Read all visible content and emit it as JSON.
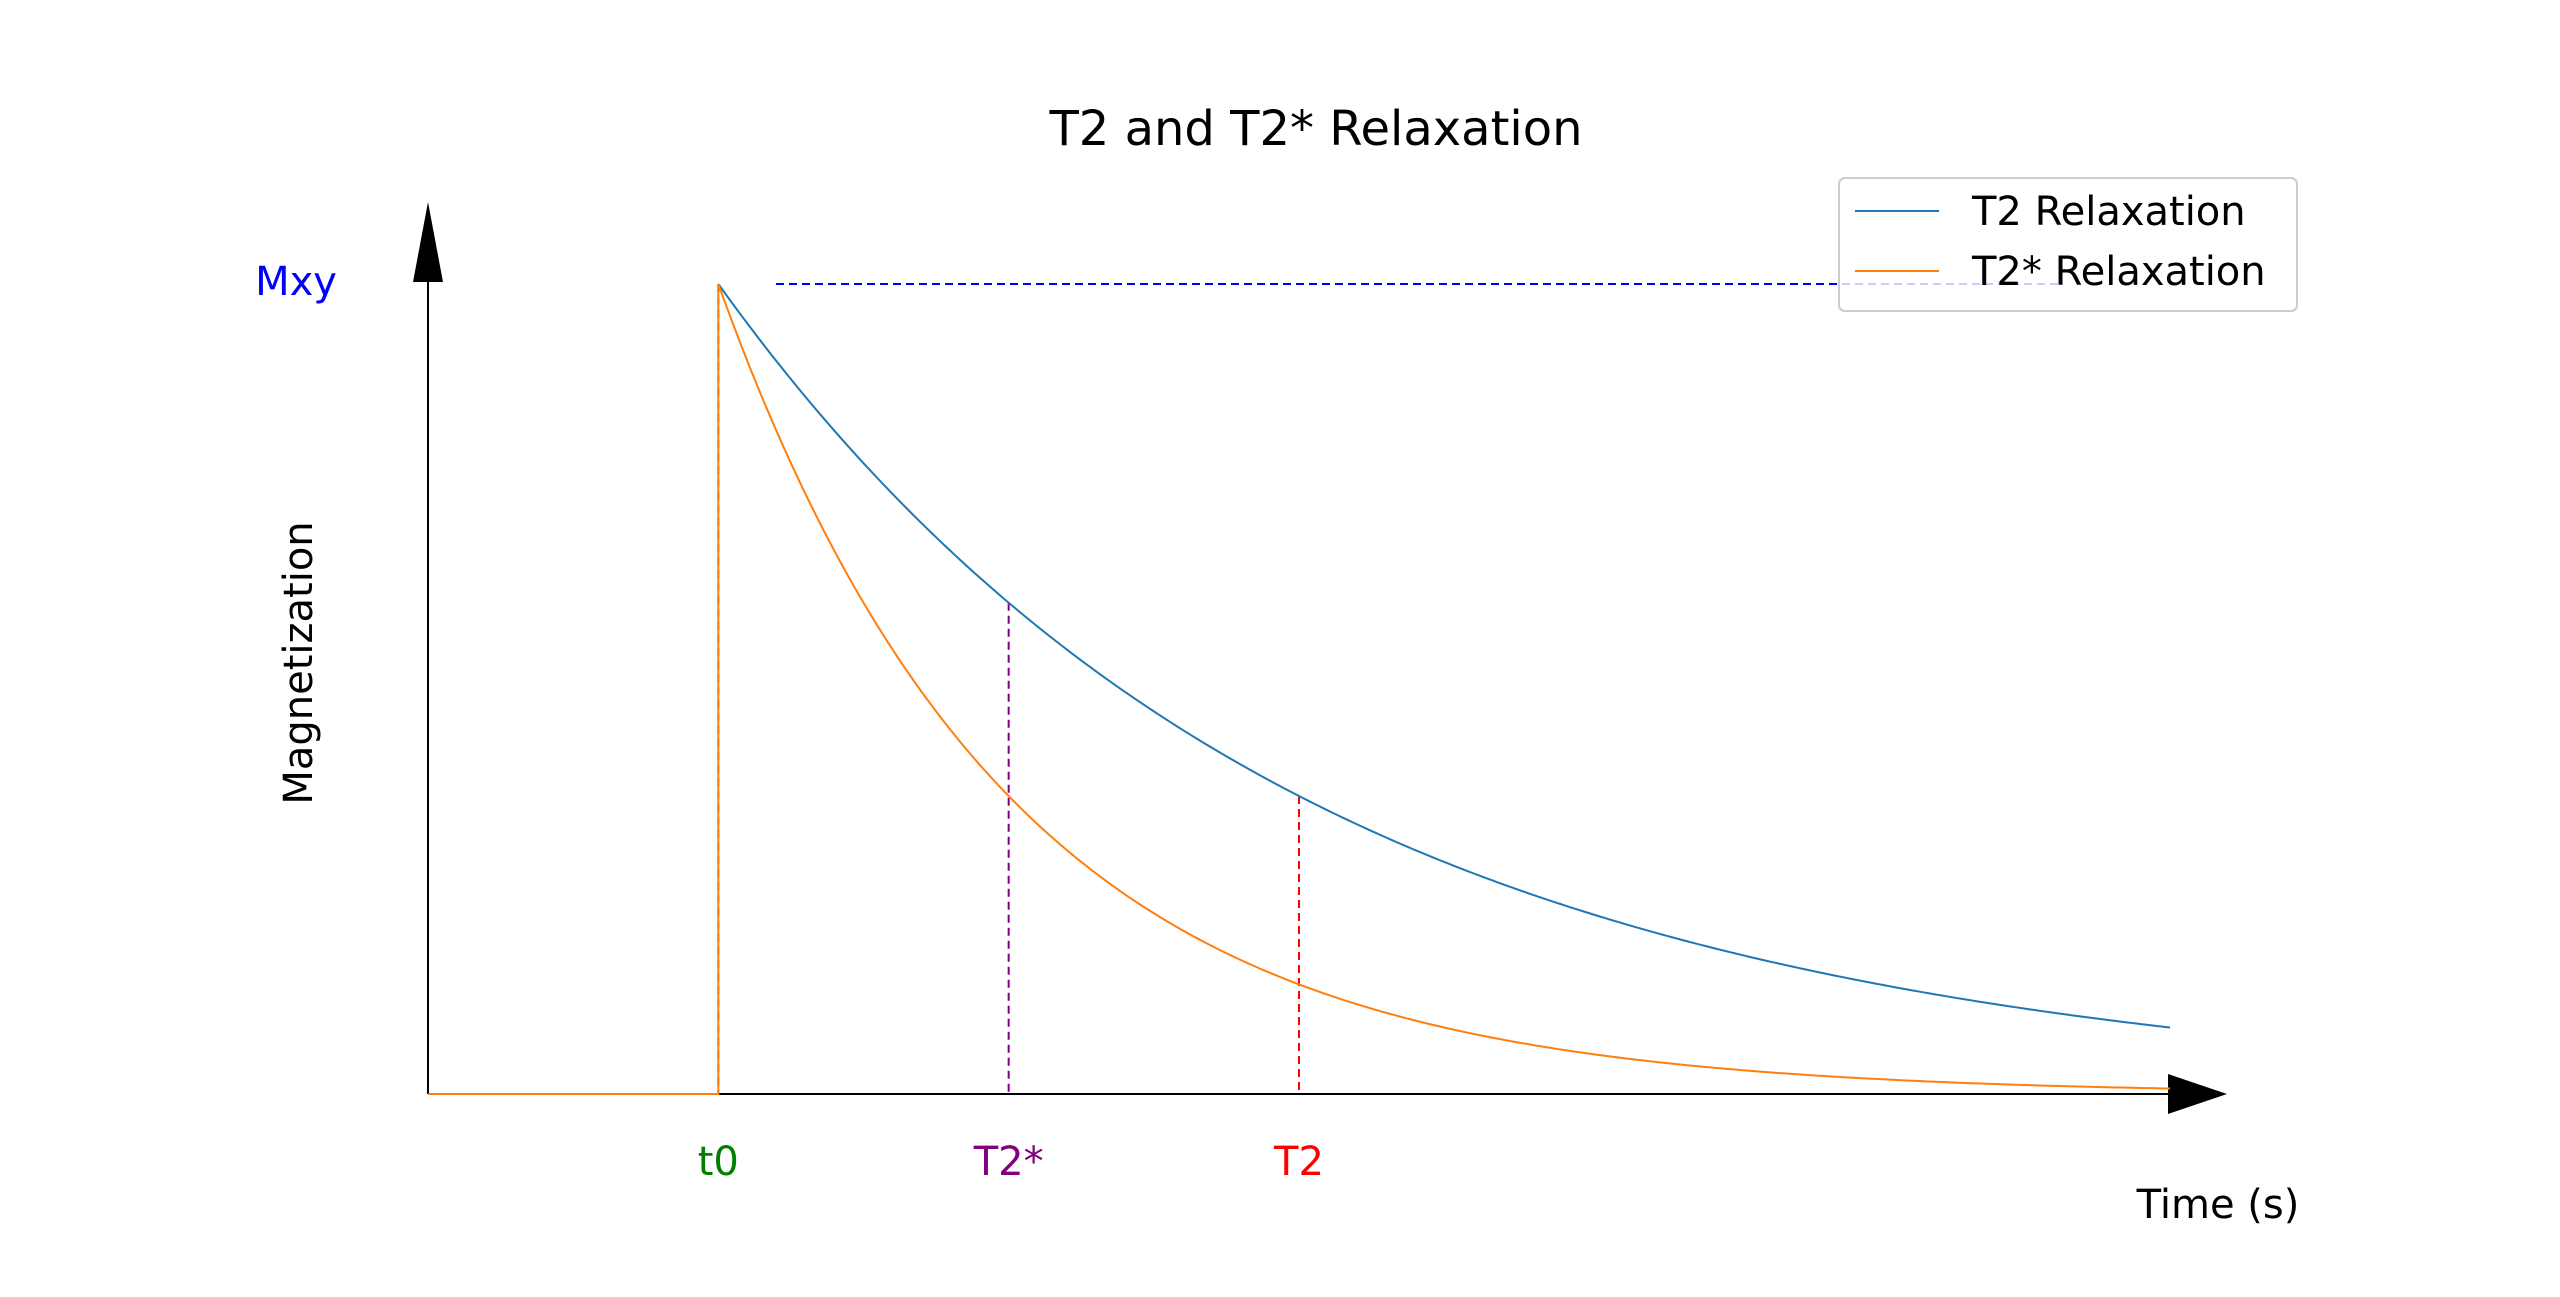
{
  "chart_data": {
    "type": "line",
    "title": "T2 and T2* Relaxation",
    "xlabel": "Time (s)",
    "ylabel": "Magnetization",
    "xlim": [
      0,
      6
    ],
    "ylim": [
      0,
      1
    ],
    "grid": false,
    "legend_position": "top-right",
    "t0": 1,
    "markers": [
      {
        "label": "t0",
        "x": 1,
        "color": "#008000"
      },
      {
        "label": "T2*",
        "x": 2,
        "color": "#800080"
      },
      {
        "label": "T2",
        "x": 3,
        "color": "#ff0000"
      }
    ],
    "mxy": {
      "label": "Mxy",
      "y": 1,
      "color": "#0000ff"
    },
    "series": [
      {
        "name": "T2 Relaxation",
        "color": "#1f77b4",
        "tau": 2,
        "x_range": [
          1,
          6
        ]
      },
      {
        "name": "T2* Relaxation",
        "color": "#ff7f0e",
        "tau": 1,
        "x_range": [
          0,
          6
        ]
      }
    ]
  }
}
